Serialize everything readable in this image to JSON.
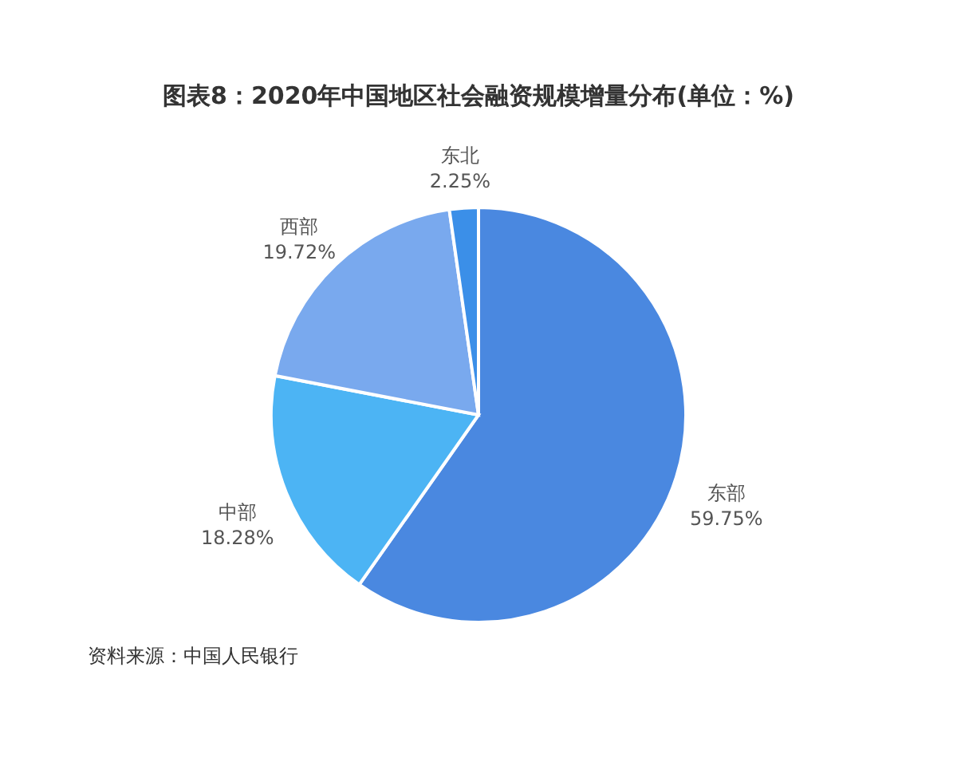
{
  "chart_data": {
    "type": "pie",
    "title": "图表8：2020年中国地区社会融资规模增量分布(单位：%)",
    "categories": [
      "东部",
      "中部",
      "西部",
      "东北"
    ],
    "values": [
      59.75,
      18.28,
      19.72,
      2.25
    ],
    "colors": [
      "#4a88e0",
      "#4cb4f4",
      "#79a9ee",
      "#3b8fe8"
    ],
    "value_labels": [
      "59.75%",
      "18.28%",
      "19.72%",
      "2.25%"
    ],
    "annotations": [
      "资料来源：中国人民银行"
    ],
    "legend": false
  }
}
